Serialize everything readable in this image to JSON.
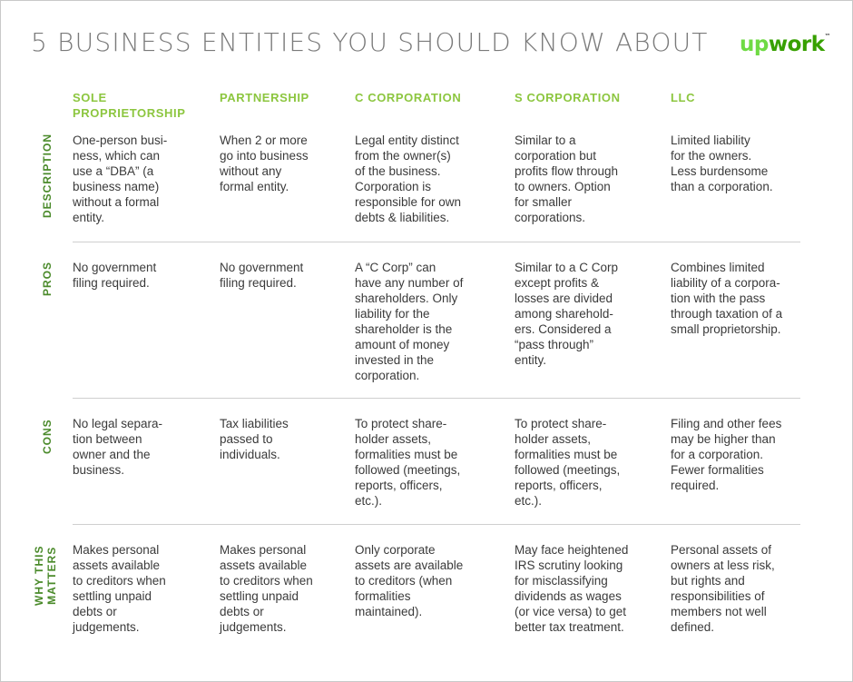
{
  "title": "5 BUSINESS ENTITIES YOU SHOULD KNOW ABOUT",
  "logo": {
    "up": "up",
    "rest": "work",
    "tm": "™"
  },
  "colors": {
    "accent_green": "#8cc63f",
    "label_green": "#4a8a2a",
    "text": "#3a3a3a"
  },
  "columns": [
    "SOLE\nPROPRIETORSHIP",
    "PARTNERSHIP",
    "C CORPORATION",
    "S CORPORATION",
    "LLC"
  ],
  "rows": [
    {
      "label": "DESCRIPTION",
      "cells": [
        "One-person busi-\nness, which can\nuse a “DBA” (a\nbusiness name)\nwithout a formal\nentity.",
        "When 2 or more\ngo into business\nwithout any\nformal entity.",
        "Legal entity distinct\nfrom the owner(s)\nof the business.\nCorporation is\nresponsible for own\ndebts & liabilities.",
        "Similar to a\ncorporation but\nprofits flow through\nto owners. Option\nfor smaller\ncorporations.",
        "Limited liability\nfor the owners.\nLess burdensome\nthan a corporation."
      ]
    },
    {
      "label": "PROS",
      "cells": [
        "No government\nfiling required.",
        "No government\nfiling required.",
        "A “C Corp” can\nhave any number of\nshareholders. Only\nliability for the\nshareholder is the\namount of money\ninvested in the\ncorporation.",
        "Similar to a C Corp\nexcept profits &\nlosses are divided\namong sharehold-\ners. Considered a\n“pass through”\nentity.",
        "Combines limited\nliability of a corpora-\ntion with the pass\nthrough taxation of a\nsmall proprietorship."
      ]
    },
    {
      "label": "CONS",
      "cells": [
        "No legal separa-\ntion between\nowner and the\nbusiness.",
        "Tax liabilities\npassed to\nindividuals.",
        "To protect share-\nholder assets,\nformalities must be\nfollowed (meetings,\nreports, officers,\netc.).",
        "To protect share-\nholder assets,\nformalities must be\nfollowed (meetings,\nreports, officers,\netc.).",
        "Filing and other fees\nmay be higher than\nfor a corporation.\nFewer formalities\nrequired."
      ]
    },
    {
      "label": "WHY THIS\nMATTERS",
      "cells": [
        "Makes personal\nassets available\nto creditors when\nsettling unpaid\ndebts or\njudgements.",
        "Makes personal\nassets available\nto creditors when\nsettling unpaid\ndebts or\njudgements.",
        "Only corporate\nassets are available\nto creditors (when\nformalities\nmaintained).",
        "May face heightened\nIRS scrutiny looking\nfor misclassifying\ndividends as wages\n(or vice versa) to get\nbetter tax treatment.",
        "Personal assets of\nowners at less risk,\nbut rights and\nresponsibilities of\nmembers not well\ndefined."
      ]
    }
  ]
}
